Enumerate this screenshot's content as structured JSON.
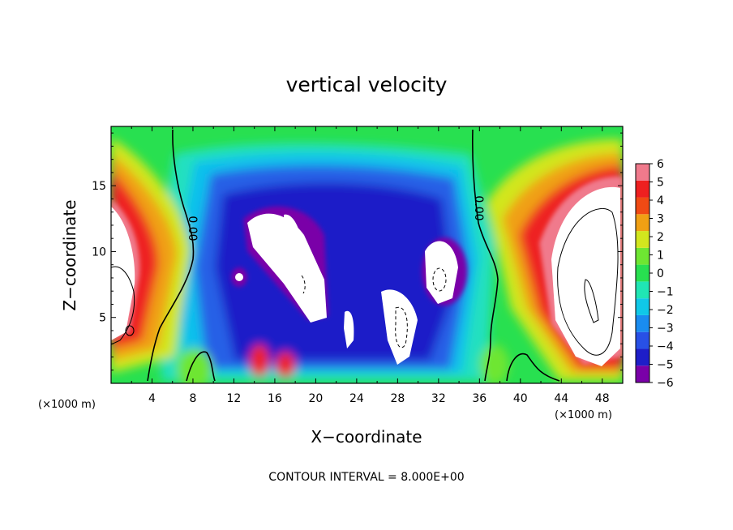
{
  "chart_data": {
    "type": "heatmap",
    "title": "vertical velocity",
    "xlabel": "X−coordinate",
    "ylabel": "Z−coordinate",
    "x_unit": "(×1000 m)",
    "x_unit_right": "(×1000 m)",
    "xlim": [
      0,
      50
    ],
    "ylim": [
      0,
      19.5
    ],
    "xticks": [
      4,
      8,
      12,
      16,
      20,
      24,
      28,
      32,
      36,
      40,
      44,
      48
    ],
    "yticks": [
      5,
      10,
      15
    ],
    "colorbar": {
      "ticks": [
        6,
        5,
        4,
        3,
        2,
        1,
        0,
        -1,
        -2,
        -3,
        -4,
        -5,
        -6
      ],
      "tick_labels": [
        "6",
        "5",
        "4",
        "3",
        "2",
        "1",
        "0",
        "−1",
        "−2",
        "−3",
        "−4",
        "−5",
        "−6"
      ],
      "range": [
        -6,
        6
      ],
      "colors": [
        "#7a00a8",
        "#1e1ec8",
        "#2850e6",
        "#1a8cf0",
        "#10c8e8",
        "#20e6b4",
        "#28e050",
        "#6ee632",
        "#d2e61e",
        "#f0a014",
        "#f04a14",
        "#ee2020",
        "#f07a8c"
      ]
    },
    "contour_labels": [
      "0.00",
      "0.00"
    ],
    "contour_interval": "8.000E+00",
    "footer": "CONTOUR INTERVAL = 8.000E+00",
    "features": [
      {
        "kind": "updraft_core",
        "x": 2,
        "z": 9,
        "value": 6
      },
      {
        "kind": "updraft_core",
        "x": 46.5,
        "z": 10,
        "value": 6
      },
      {
        "kind": "downdraft_core",
        "x": 19,
        "z": 10.5,
        "value": -6
      },
      {
        "kind": "downdraft_core",
        "x": 28,
        "z": 5,
        "value": -6
      },
      {
        "kind": "downdraft_core",
        "x": 33,
        "z": 8,
        "value": -6
      },
      {
        "kind": "downdraft_core",
        "x": 24,
        "z": 6,
        "value": -6
      }
    ]
  }
}
